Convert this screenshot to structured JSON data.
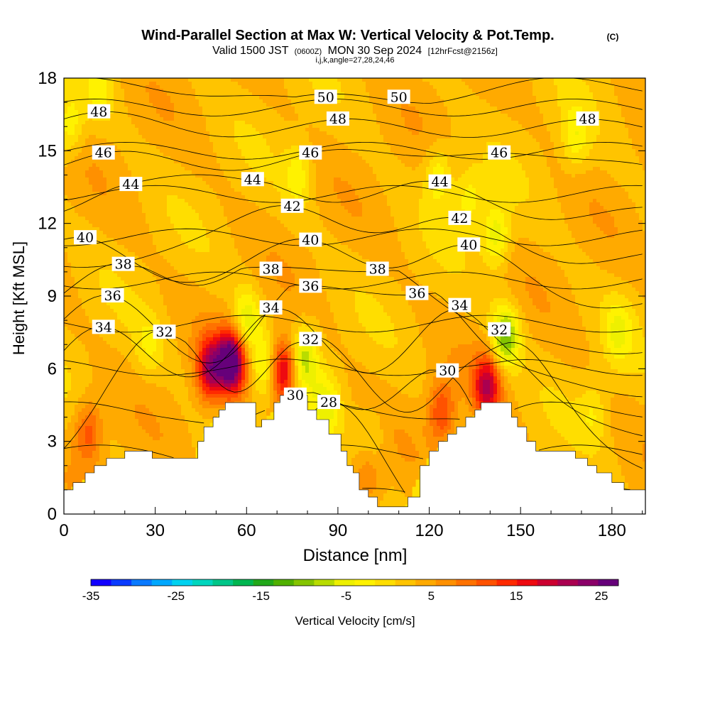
{
  "chart_data": {
    "type": "heatmap",
    "title": {
      "main": "Wind-Parallel Section at Max W: Vertical Velocity & Pot.Temp.",
      "copyright": "(C)",
      "valid_prefix": "Valid 1500 JST",
      "valid_utc": "(0600Z)",
      "valid_date": "MON 30 Sep 2024",
      "forecast": "[12hrFcst@2156z]",
      "subtitle": "i,j,k,angle=27,28,24,46"
    },
    "xlabel": "Distance [nm]",
    "ylabel": "Height [Kft MSL]",
    "xlim": [
      0,
      191
    ],
    "ylim": [
      0,
      18
    ],
    "xticks": [
      "0",
      "30",
      "60",
      "90",
      "120",
      "150",
      "180"
    ],
    "yticks": [
      "0",
      "3",
      "6",
      "9",
      "12",
      "15",
      "18"
    ],
    "colorbar": {
      "label": "Vertical Velocity [cm/s]",
      "ticks": [
        "-35",
        "-25",
        "-15",
        "-5",
        "5",
        "15",
        "25"
      ],
      "range": [
        -35,
        27
      ],
      "colors": [
        "#1200ff",
        "#0a3bff",
        "#0a7aff",
        "#00a8ff",
        "#00d2f0",
        "#00d6be",
        "#00c688",
        "#00b650",
        "#22a81a",
        "#50b000",
        "#84c400",
        "#b8dc00",
        "#eef000",
        "#fff200",
        "#ffde00",
        "#ffc400",
        "#ffaa00",
        "#ff9000",
        "#ff7200",
        "#ff5200",
        "#ff2a00",
        "#ee0a10",
        "#cc0030",
        "#aa0050",
        "#8a0068",
        "#66007a"
      ]
    },
    "terrain_profile": {
      "x": [
        0,
        3,
        7,
        10,
        14,
        20,
        24,
        29,
        32,
        42,
        44,
        46,
        49,
        51,
        53,
        60,
        63,
        65,
        69,
        71,
        78,
        80,
        83,
        87,
        91,
        93,
        95,
        97,
        100,
        103,
        107,
        111,
        113,
        117,
        120,
        123,
        126,
        129,
        132,
        135,
        137,
        140,
        145,
        147,
        149,
        152,
        155,
        163,
        168,
        172,
        175,
        180,
        184,
        188,
        191
      ],
      "y": [
        1.0,
        1.3,
        1.7,
        2.0,
        2.3,
        2.6,
        2.6,
        2.3,
        2.3,
        2.3,
        3.0,
        3.6,
        4.0,
        4.3,
        4.6,
        4.6,
        3.6,
        3.9,
        4.6,
        4.9,
        4.9,
        4.3,
        3.9,
        3.3,
        2.6,
        2.0,
        1.7,
        1.0,
        0.7,
        0.3,
        0.3,
        0.3,
        0.7,
        2.0,
        2.6,
        3.0,
        3.3,
        3.6,
        4.0,
        4.3,
        4.6,
        4.6,
        4.6,
        4.0,
        3.6,
        3.0,
        2.6,
        2.6,
        2.3,
        2.0,
        1.7,
        1.3,
        1.0,
        1.0,
        1.0
      ]
    },
    "theta_contours": {
      "levels": [
        28,
        29,
        30,
        31,
        32,
        33,
        34,
        35,
        36,
        37,
        38,
        39,
        40,
        41,
        42,
        43,
        44,
        45,
        46,
        47,
        48,
        49,
        50,
        51
      ],
      "labels": [
        {
          "text": "50",
          "x": 86,
          "y": 17.2
        },
        {
          "text": "50",
          "x": 110,
          "y": 17.2
        },
        {
          "text": "48",
          "x": 11.5,
          "y": 16.6
        },
        {
          "text": "48",
          "x": 90,
          "y": 16.3
        },
        {
          "text": "48",
          "x": 172,
          "y": 16.3
        },
        {
          "text": "46",
          "x": 13,
          "y": 14.9
        },
        {
          "text": "46",
          "x": 81,
          "y": 14.9
        },
        {
          "text": "46",
          "x": 143,
          "y": 14.9
        },
        {
          "text": "44",
          "x": 22,
          "y": 13.6
        },
        {
          "text": "44",
          "x": 62,
          "y": 13.8
        },
        {
          "text": "44",
          "x": 123.5,
          "y": 13.7
        },
        {
          "text": "42",
          "x": 75,
          "y": 12.7
        },
        {
          "text": "42",
          "x": 130,
          "y": 12.2
        },
        {
          "text": "40",
          "x": 7,
          "y": 11.4
        },
        {
          "text": "40",
          "x": 81,
          "y": 11.3
        },
        {
          "text": "40",
          "x": 133,
          "y": 11.1
        },
        {
          "text": "38",
          "x": 19.5,
          "y": 10.3
        },
        {
          "text": "38",
          "x": 68,
          "y": 10.1
        },
        {
          "text": "38",
          "x": 103,
          "y": 10.1
        },
        {
          "text": "36",
          "x": 16,
          "y": 9.0
        },
        {
          "text": "36",
          "x": 81,
          "y": 9.4
        },
        {
          "text": "36",
          "x": 116,
          "y": 9.1
        },
        {
          "text": "34",
          "x": 13,
          "y": 7.7
        },
        {
          "text": "34",
          "x": 68,
          "y": 8.5
        },
        {
          "text": "34",
          "x": 130,
          "y": 8.6
        },
        {
          "text": "32",
          "x": 33,
          "y": 7.5
        },
        {
          "text": "32",
          "x": 81,
          "y": 7.2
        },
        {
          "text": "32",
          "x": 143,
          "y": 7.6
        },
        {
          "text": "30",
          "x": 76,
          "y": 4.9
        },
        {
          "text": "30",
          "x": 126,
          "y": 5.9
        },
        {
          "text": "28",
          "x": 87,
          "y": 4.6
        }
      ]
    },
    "w_features": [
      {
        "x": 48,
        "y": 6.0,
        "value": 17
      },
      {
        "x": 55,
        "y": 6.3,
        "value": 25
      },
      {
        "x": 72,
        "y": 5.9,
        "value": 18
      },
      {
        "x": 139,
        "y": 5.3,
        "value": 16
      },
      {
        "x": 124,
        "y": 4.2,
        "value": 10
      },
      {
        "x": 8,
        "y": 3.4,
        "value": 9
      },
      {
        "x": 100,
        "y": 1.8,
        "value": 6
      },
      {
        "x": 145,
        "y": 7.3,
        "value": -14
      },
      {
        "x": 142,
        "y": 11.5,
        "value": -9
      },
      {
        "x": 123,
        "y": 14.0,
        "value": -7
      },
      {
        "x": 133,
        "y": 13.0,
        "value": -6
      },
      {
        "x": 168,
        "y": 15.5,
        "value": -6
      },
      {
        "x": 2,
        "y": 16.0,
        "value": -7
      },
      {
        "x": 12,
        "y": 17.5,
        "value": -5
      },
      {
        "x": 77,
        "y": 14.0,
        "value": -6
      },
      {
        "x": 60,
        "y": 8.0,
        "value": -9
      },
      {
        "x": 66,
        "y": 6.0,
        "value": -8
      },
      {
        "x": 79,
        "y": 6.5,
        "value": -10
      },
      {
        "x": 86,
        "y": 4.5,
        "value": -7
      },
      {
        "x": 182,
        "y": 7.5,
        "value": -6
      },
      {
        "x": 174,
        "y": 4.2,
        "value": -4
      },
      {
        "x": 28,
        "y": 7.0,
        "value": -4
      },
      {
        "x": 101,
        "y": 3.0,
        "value": -5
      }
    ]
  }
}
